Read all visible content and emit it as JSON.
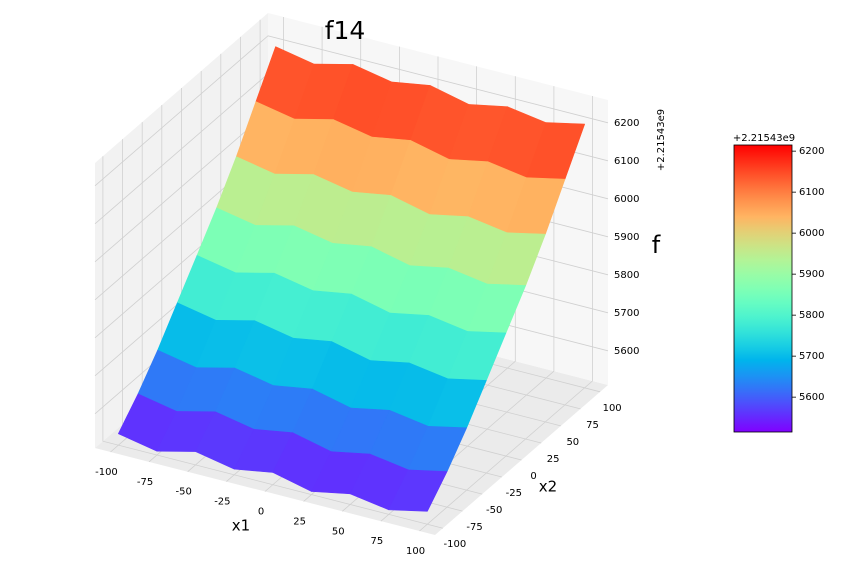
{
  "chart_data": {
    "type": "surface",
    "title": "f14",
    "x_label": "x1",
    "y_label": "x2",
    "z_label": "f",
    "offset_label": "+2.21543e9",
    "colormap": "rainbow",
    "x": [
      -100,
      -75,
      -50,
      -25,
      0,
      25,
      50,
      75,
      100
    ],
    "y": [
      -100,
      -75,
      -50,
      -25,
      0,
      25,
      50,
      75,
      100
    ],
    "z": [
      [
        5540,
        5520,
        5545,
        5525,
        5542,
        5518,
        5538,
        5522,
        5544
      ],
      [
        5600,
        5580,
        5605,
        5585,
        5602,
        5578,
        5598,
        5582,
        5604
      ],
      [
        5670,
        5650,
        5675,
        5655,
        5672,
        5648,
        5668,
        5652,
        5674
      ],
      [
        5750,
        5730,
        5755,
        5735,
        5752,
        5728,
        5748,
        5732,
        5754
      ],
      [
        5830,
        5810,
        5835,
        5815,
        5832,
        5808,
        5828,
        5812,
        5834
      ],
      [
        5910,
        5890,
        5915,
        5895,
        5912,
        5888,
        5908,
        5892,
        5914
      ],
      [
        6000,
        5980,
        6005,
        5985,
        6002,
        5978,
        5998,
        5982,
        6004
      ],
      [
        6100,
        6080,
        6105,
        6085,
        6102,
        6078,
        6098,
        6082,
        6104
      ],
      [
        6200,
        6180,
        6205,
        6185,
        6202,
        6178,
        6198,
        6182,
        6204
      ]
    ],
    "xlim": [
      -110,
      110
    ],
    "ylim": [
      -110,
      110
    ],
    "zlim": [
      5510,
      6260
    ],
    "xticks": [
      -100,
      -75,
      -50,
      -25,
      0,
      25,
      50,
      75,
      100
    ],
    "yticks": [
      -100,
      -75,
      -50,
      -25,
      0,
      25,
      50,
      75,
      100
    ],
    "zticks": [
      5600,
      5700,
      5800,
      5900,
      6000,
      6100,
      6200
    ],
    "colorbar": {
      "lim": [
        5515,
        6215
      ],
      "ticks": [
        5600,
        5700,
        5800,
        5900,
        6000,
        6100,
        6200
      ]
    }
  }
}
